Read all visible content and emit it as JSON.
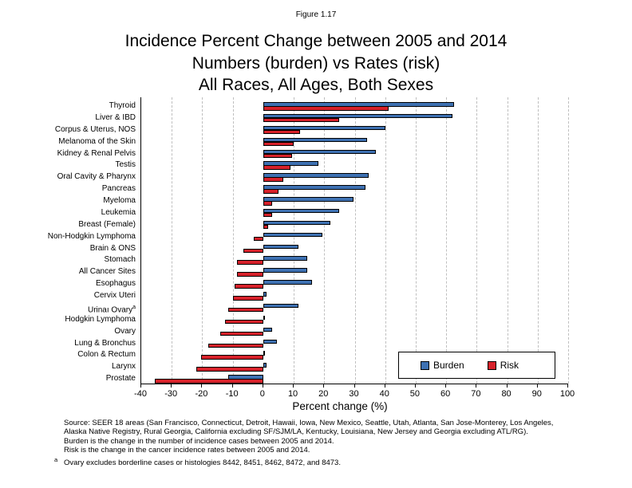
{
  "figure_label": "Figure 1.17",
  "title_lines": [
    "Incidence Percent Change between 2005 and 2014",
    "Numbers (burden) vs Rates (risk)",
    "All Races, All Ages, Both Sexes"
  ],
  "chart_data": {
    "type": "bar",
    "orientation": "horizontal",
    "title": "Incidence Percent Change between 2005 and 2014 Numbers (burden) vs Rates (risk) All Races, All Ages, Both Sexes",
    "xlabel": "Percent change (%)",
    "xlim": [
      -40,
      100
    ],
    "xticks": [
      -40,
      -30,
      -20,
      -10,
      0,
      10,
      20,
      30,
      40,
      50,
      60,
      70,
      80,
      90,
      100
    ],
    "gridlines": [
      -30,
      -20,
      -10,
      10,
      20,
      30,
      40,
      50,
      60,
      70,
      80,
      90,
      100
    ],
    "grid": "dashed-vertical",
    "legend_position": "bottom-right-inside",
    "categories": [
      {
        "label": "Thyroid"
      },
      {
        "label": "Liver & IBD"
      },
      {
        "label": "Corpus & Uterus, NOS"
      },
      {
        "label": "Melanoma of the Skin"
      },
      {
        "label": "Kidney & Renal Pelvis"
      },
      {
        "label": "Testis"
      },
      {
        "label": "Oral Cavity & Pharynx"
      },
      {
        "label": "Pancreas"
      },
      {
        "label": "Myeloma"
      },
      {
        "label": "Leukemia"
      },
      {
        "label": "Breast (Female)"
      },
      {
        "label": "Non-Hodgkin Lymphoma"
      },
      {
        "label": "Brain & ONS"
      },
      {
        "label": "Stomach"
      },
      {
        "label": "All Cancer Sites"
      },
      {
        "label": "Esophagus"
      },
      {
        "label": "Cervix Uteri"
      },
      {
        "label": "Urinaı Ovary",
        "sup": "a"
      },
      {
        "label": "Hodgkin Lymphoma"
      },
      {
        "label": "Ovary"
      },
      {
        "label": "Lung & Bronchus"
      },
      {
        "label": "Colon & Rectum"
      },
      {
        "label": "Larynx"
      },
      {
        "label": "Prostate"
      }
    ],
    "series": [
      {
        "name": "Burden",
        "color": "#3e71b2",
        "values": [
          62.5,
          62,
          40,
          34,
          37,
          18,
          34.5,
          33.5,
          29.5,
          25,
          22,
          19.5,
          11.5,
          14.5,
          14.5,
          16,
          1.2,
          11.5,
          0.4,
          3,
          4.5,
          0.4,
          1.2,
          -11.5
        ]
      },
      {
        "name": "Risk",
        "color": "#d6212a",
        "values": [
          41,
          25,
          12,
          10,
          9.5,
          9,
          6.5,
          5,
          3,
          3,
          1.5,
          -3,
          -6.5,
          -8.5,
          -8.5,
          -9.5,
          -10,
          -11.5,
          -12.5,
          -14,
          -18,
          -20.5,
          -22,
          -35.5
        ]
      }
    ]
  },
  "footnote_lines": [
    "Source: SEER 18 areas (San Francisco, Connecticut, Detroit, Hawaii, Iowa, New Mexico, Seattle, Utah, Atlanta, San Jose-Monterey, Los Angeles,",
    "Alaska Native Registry, Rural Georgia, California excluding SF/SJM/LA, Kentucky, Louisiana, New Jersey and Georgia excluding ATL/RG).",
    "Burden is the change in the number of incidence cases between 2005 and 2014.",
    "Risk is the change in the cancer incidence rates between 2005 and 2014."
  ],
  "footnote_sup_marker": "a",
  "footnote_sup_text": "Ovary excludes borderline cases or histologies 8442, 8451, 8462, 8472, and 8473."
}
